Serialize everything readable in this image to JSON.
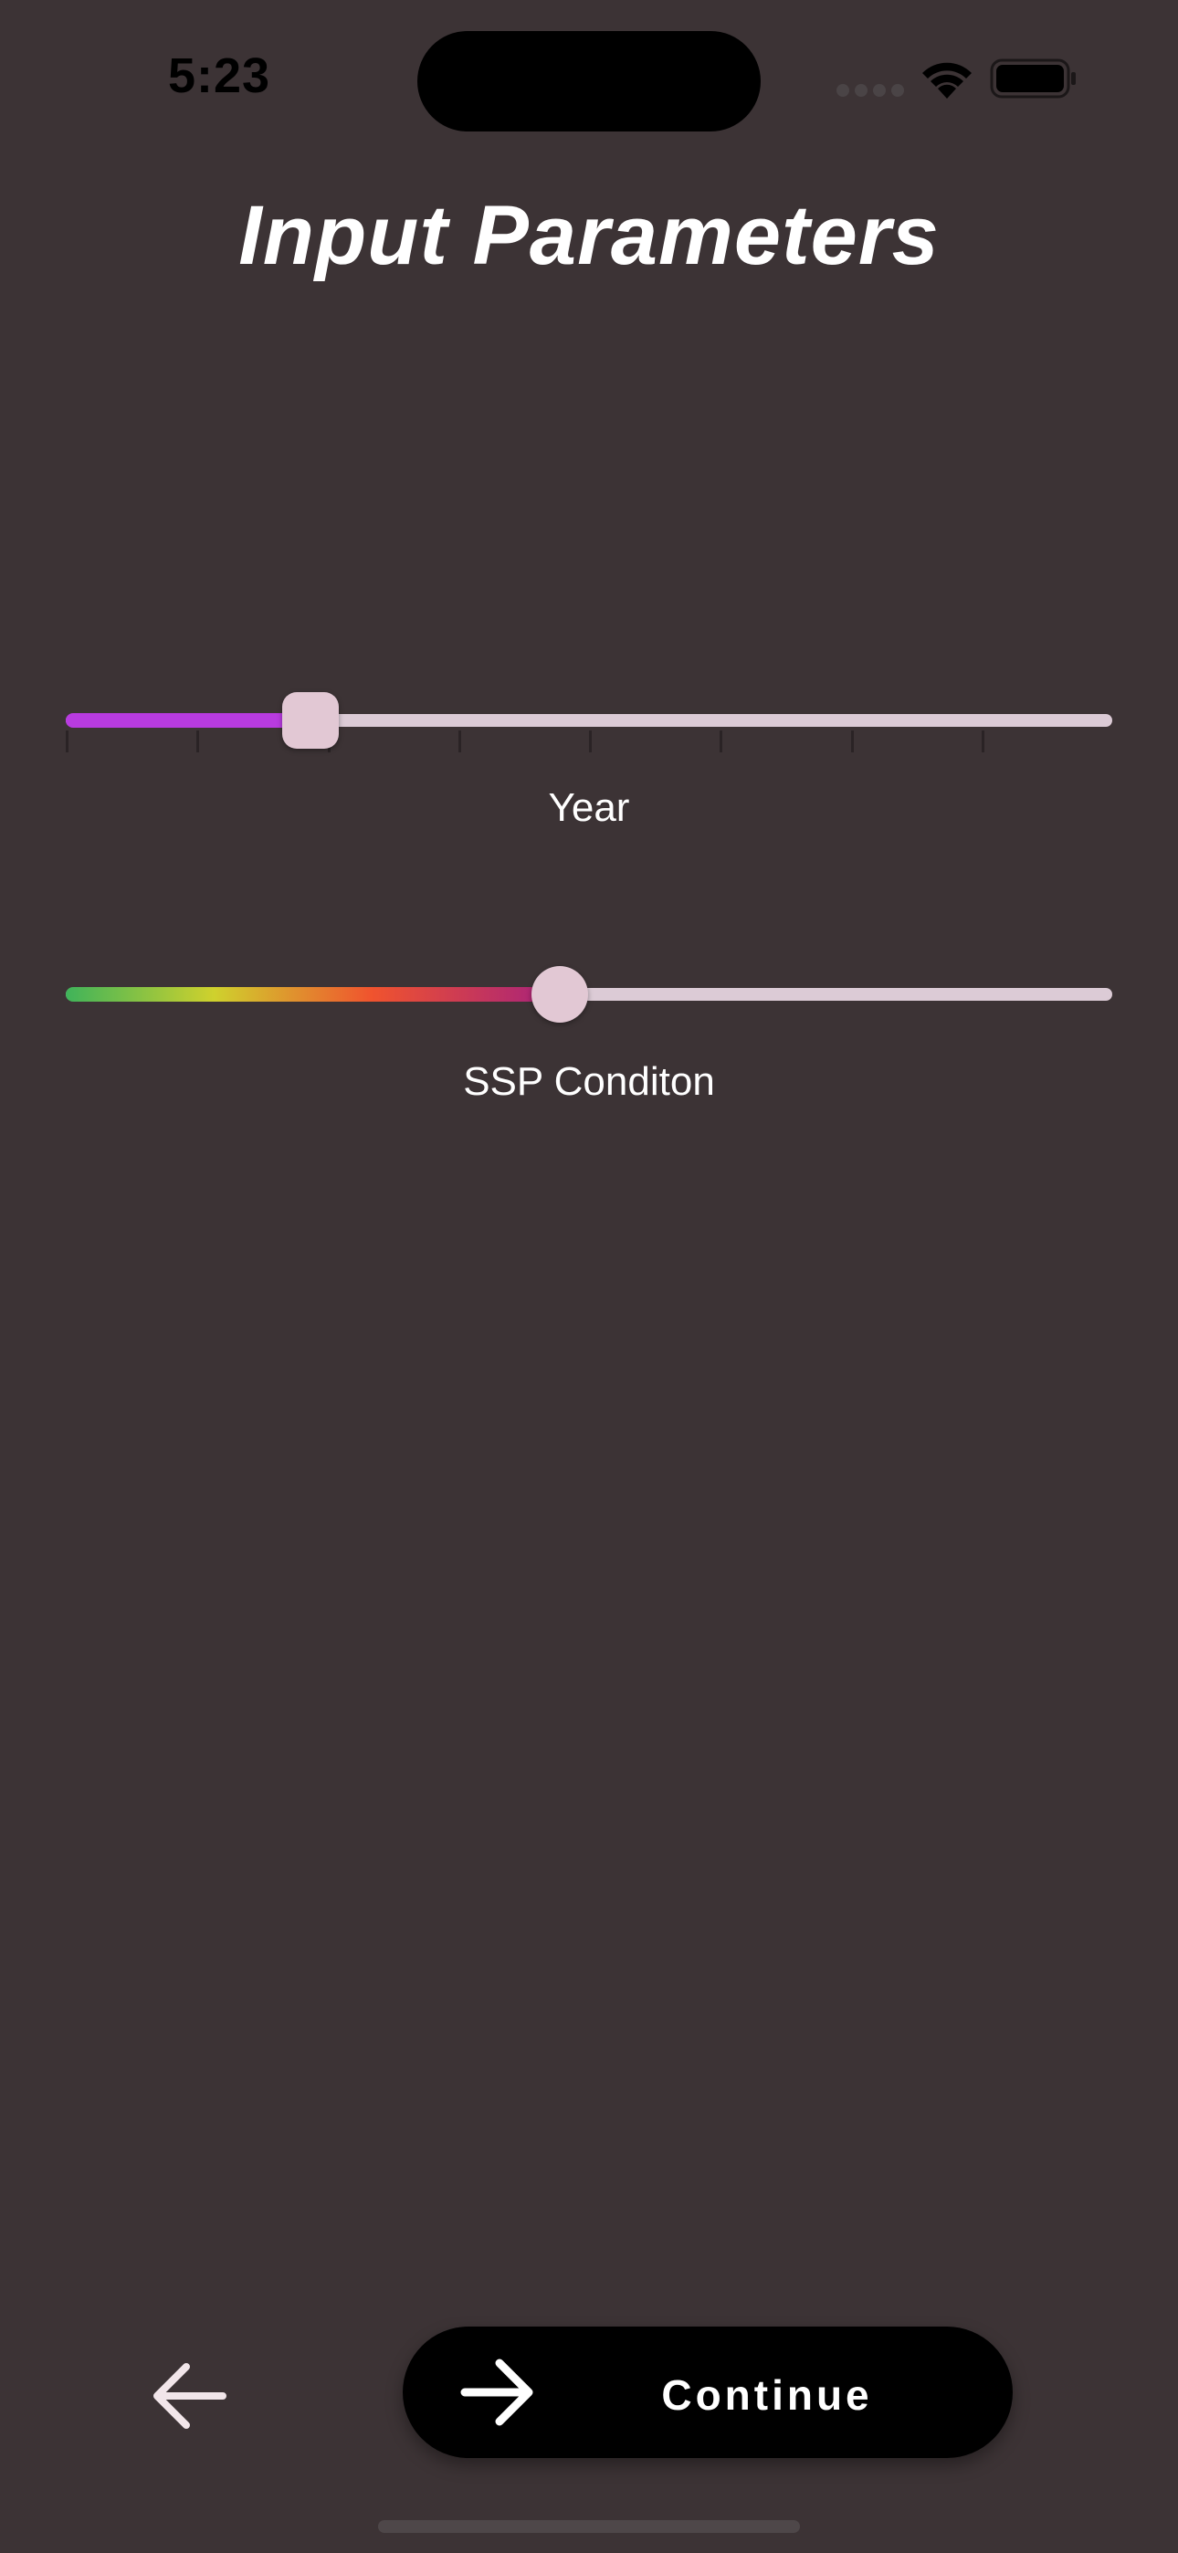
{
  "status_bar": {
    "time": "5:23",
    "icons": [
      "cellular-signal-icon",
      "wifi-icon",
      "battery-icon"
    ]
  },
  "header": {
    "title": "Input Parameters"
  },
  "sliders": [
    {
      "label": "Year",
      "value_fraction": 0.234,
      "tick_count": 8,
      "fill_color": "#b83be0",
      "track_color": "#dccbd6"
    },
    {
      "label": "SSP Conditon",
      "value_fraction": 0.472,
      "gradient_colors": [
        "#3fb35a",
        "#cfd12d",
        "#f0532e",
        "#a5207e"
      ],
      "track_color": "#dccbd6"
    }
  ],
  "navigation": {
    "back_icon": "arrow-left-icon",
    "continue_icon": "arrow-right-icon",
    "continue_label": "Continue"
  },
  "colors": {
    "background": "#3c3335",
    "button": "#000000",
    "thumb": "#e2c8d4"
  }
}
